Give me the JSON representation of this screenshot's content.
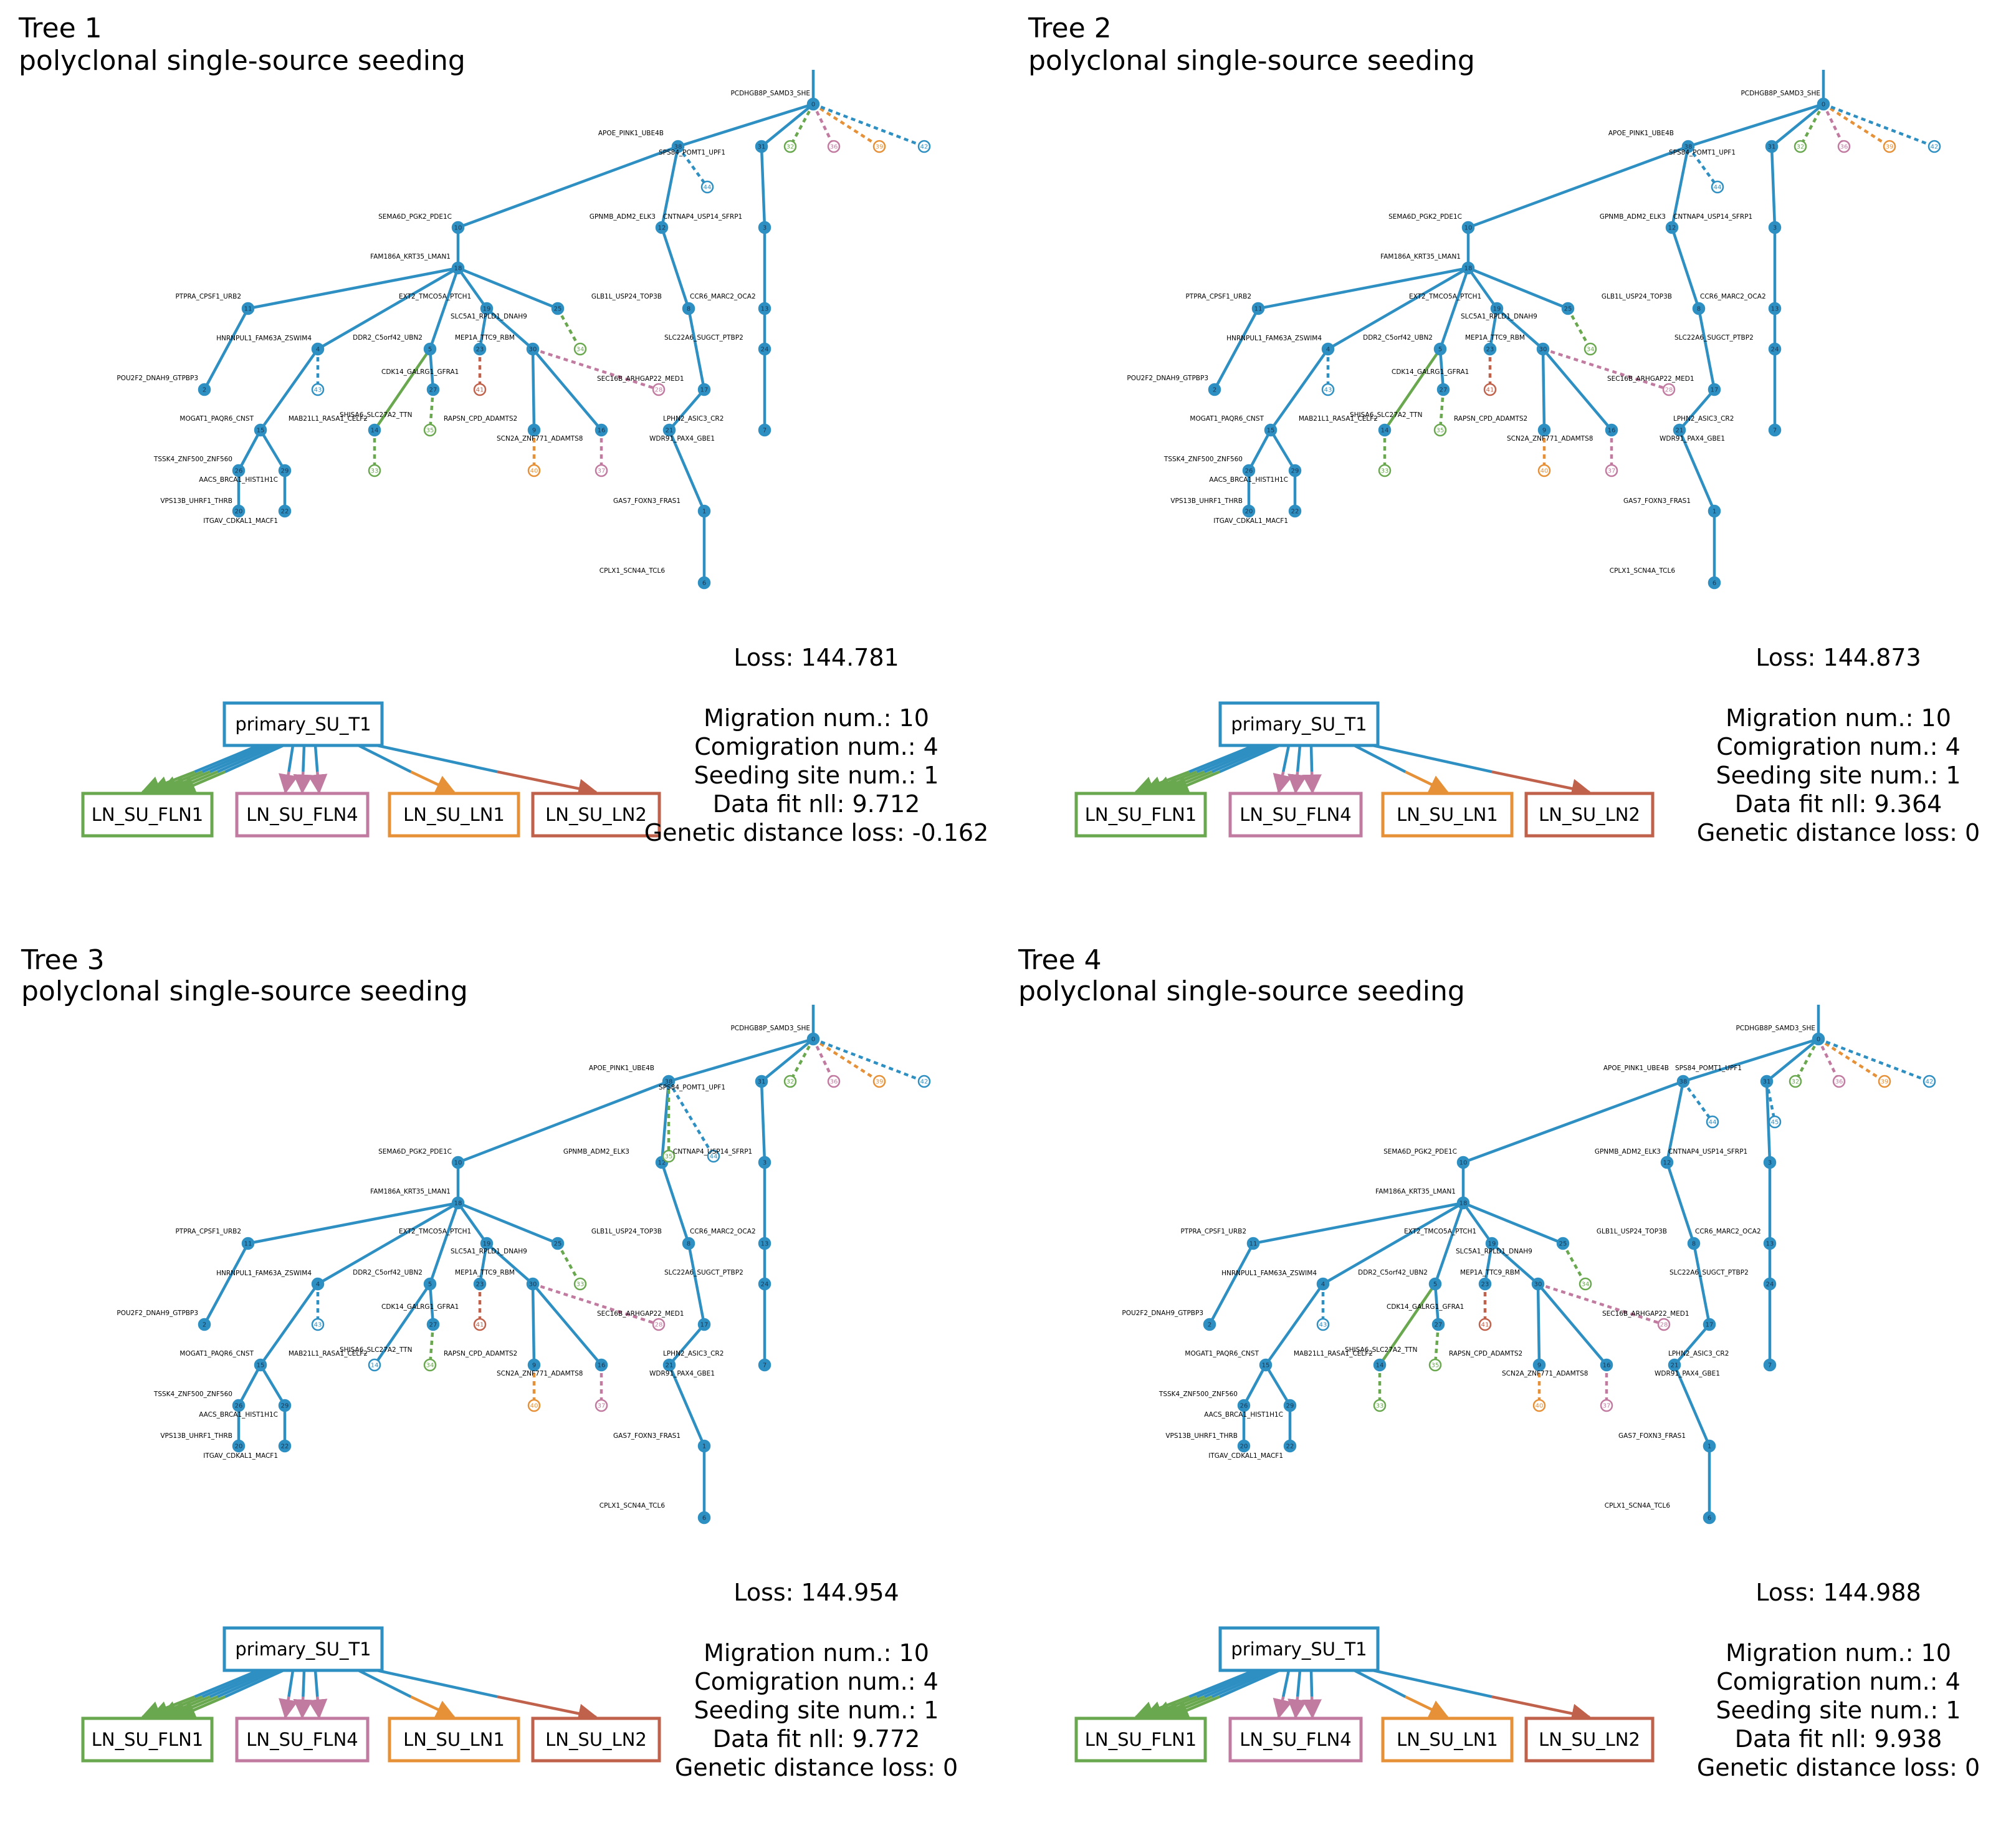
{
  "colors": {
    "primary": "#2e8fc2",
    "ln_su_fln1": "#6aa84f",
    "ln_su_fln4": "#c27ba0",
    "ln_su_ln1": "#e69138",
    "ln_su_ln2": "#c0614b"
  },
  "labels": [
    {
      "id": "0",
      "text": "PCDHGB8P_SAMD3_SHE"
    },
    {
      "id": "38",
      "text": "APOE_PINK1_UBE4B"
    },
    {
      "id": "s1",
      "text": "SPS84_POMT1_UPF1"
    },
    {
      "id": "10",
      "text": "SEMA6D_PGK2_PDE1C"
    },
    {
      "id": "18",
      "text": "FAM186A_KRT35_LMAN1"
    },
    {
      "id": "11",
      "text": "PTPRA_CPSF1_URB2"
    },
    {
      "id": "4",
      "text": "HNRNPUL1_FAM63A_ZSWIM4"
    },
    {
      "id": "2",
      "text": "POU2F2_DNAH9_GTPBP3"
    },
    {
      "id": "15",
      "text": "MOGAT1_PAQR6_CNST"
    },
    {
      "id": "26",
      "text": "TSSK4_ZNF500_ZNF560"
    },
    {
      "id": "29",
      "text": "AACS_BRCA1_HIST1H1C"
    },
    {
      "id": "20",
      "text": "VPS13B_UHRF1_THRB"
    },
    {
      "id": "22",
      "text": "ITGAV_CDKAL1_MACF1"
    },
    {
      "id": "19",
      "text": "EXT2_TMCO5A_PTCH1"
    },
    {
      "id": "5",
      "text": "DDR2_C5orf42_UBN2"
    },
    {
      "id": "14",
      "text": "MAB21L1_RASA1_CELF2"
    },
    {
      "id": "27",
      "text": "CDK14_GALRG1_GFRA1"
    },
    {
      "id": "s2",
      "text": "SHISA6_SLC27A2_TTN"
    },
    {
      "id": "25",
      "text": "SLC5A1_RPLD1_DNAH9"
    },
    {
      "id": "23",
      "text": "MEP1A_TTC9_RBM"
    },
    {
      "id": "30",
      "text": "RAPSN_CPD_ADAMTS2"
    },
    {
      "id": "7",
      "text": "SCN2A_ZNF771_ADAMTS8"
    },
    {
      "id": "s3",
      "text": "SEC16B_ARHGAP22_MED1"
    },
    {
      "id": "12",
      "text": "GPNMB_ADM2_ELK3"
    },
    {
      "id": "31",
      "text": "CNTNAP4_USP14_SFRP1"
    },
    {
      "id": "8",
      "text": "GLB1L_USP24_TOP3B"
    },
    {
      "id": "s4",
      "text": "CCR6_MARC2_OCA2"
    },
    {
      "id": "17",
      "text": "SLC22A6_SUGCT_PTBP2"
    },
    {
      "id": "21",
      "text": "LPHN2_ASIC3_CR2"
    },
    {
      "id": "s5",
      "text": "WDR91_PAX4_GBE1"
    },
    {
      "id": "1",
      "text": "GAS7_FOXN3_FRAS1"
    },
    {
      "id": "6",
      "text": "CPLX1_SCN4A_TCL6"
    }
  ],
  "panels": [
    {
      "title": "Tree 1",
      "subtitle": "polyclonal single-source seeding",
      "loss": "Loss: 144.781",
      "stats": [
        "Migration num.: 10",
        "Comigration num.: 4",
        "Seeding site num.: 1",
        "Data fit nll: 9.712",
        "Genetic distance loss: -0.162"
      ],
      "nodes": {
        "0": "0",
        "38": "38",
        "31": "31",
        "32": "32",
        "36": "36",
        "39": "39",
        "42": "42",
        "44": "44",
        "10": "10",
        "12": "12",
        "3": "3",
        "18": "18",
        "11": "11",
        "19": "19",
        "25": "25",
        "8": "8",
        "13": "13",
        "4": "4",
        "5": "5",
        "23": "23",
        "30": "30",
        "34": "34",
        "24": "24",
        "28": "28",
        "2": "2",
        "43": "43",
        "27": "27",
        "41": "41",
        "17": "17",
        "15": "15",
        "14": "14",
        "35": "35",
        "9": "9",
        "16": "16",
        "21": "21",
        "7": "7",
        "26": "26",
        "29": "29",
        "33": "33",
        "40": "40",
        "37": "37",
        "20": "20",
        "22": "22",
        "1": "1",
        "6": "6"
      },
      "primary": "primary_SU_T1",
      "sites": [
        "LN_SU_FLN1",
        "LN_SU_FLN4",
        "LN_SU_LN1",
        "LN_SU_LN2"
      ],
      "migration_counts": {
        "LN_SU_FLN1": 5,
        "LN_SU_FLN4": 3,
        "LN_SU_LN1": 1,
        "LN_SU_LN2": 1
      }
    },
    {
      "title": "Tree 2",
      "subtitle": "polyclonal single-source seeding",
      "loss": "Loss: 144.873",
      "stats": [
        "Migration num.: 10",
        "Comigration num.: 4",
        "Seeding site num.: 1",
        "Data fit nll: 9.364",
        "Genetic distance loss: 0"
      ],
      "nodes": {
        "0": "0",
        "38": "38",
        "31": "31",
        "32": "32",
        "36": "36",
        "39": "39",
        "42": "42",
        "44": "44",
        "10": "10",
        "12": "12",
        "3": "3",
        "18": "18",
        "11": "11",
        "19": "19",
        "25": "25",
        "8": "8",
        "13": "13",
        "4": "4",
        "5": "5",
        "23": "23",
        "30": "30",
        "34": "34",
        "24": "24",
        "28": "28",
        "2": "2",
        "43": "43",
        "27": "27",
        "41": "41",
        "17": "17",
        "15": "15",
        "14": "14",
        "35": "35",
        "9": "9",
        "16": "16",
        "21": "21",
        "7": "7",
        "26": "26",
        "29": "29",
        "33": "33",
        "40": "40",
        "37": "37",
        "20": "20",
        "22": "22",
        "1": "1",
        "6": "6"
      },
      "primary": "primary_SU_T1",
      "sites": [
        "LN_SU_FLN1",
        "LN_SU_FLN4",
        "LN_SU_LN1",
        "LN_SU_LN2"
      ],
      "migration_counts": {
        "LN_SU_FLN1": 5,
        "LN_SU_FLN4": 3,
        "LN_SU_LN1": 1,
        "LN_SU_LN2": 1
      }
    },
    {
      "title": "Tree 3",
      "subtitle": "polyclonal single-source seeding",
      "loss": "Loss: 144.954",
      "stats": [
        "Migration num.: 10",
        "Comigration num.: 4",
        "Seeding site num.: 1",
        "Data fit nll: 9.772",
        "Genetic distance loss: 0"
      ],
      "nodes": {
        "0": "0",
        "38": "38",
        "31": "31",
        "32": "32",
        "36": "36",
        "39": "39",
        "42": "42",
        "44": "44",
        "10": "10",
        "12": "12",
        "3": "3",
        "18": "18",
        "11": "11",
        "19": "19",
        "25": "25",
        "8": "8",
        "13": "13",
        "4": "4",
        "5": "5",
        "23": "23",
        "30": "30",
        "33": "33",
        "24": "24",
        "28": "28",
        "2": "2",
        "43": "43",
        "27": "27",
        "41": "41",
        "17": "17",
        "15": "15",
        "14": "14",
        "34": "34",
        "9": "9",
        "16": "16",
        "21": "21",
        "7": "7",
        "26": "26",
        "29": "29",
        "40": "40",
        "37": "37",
        "20": "20",
        "22": "22",
        "1": "1",
        "6": "6",
        "35": "35"
      },
      "primary": "primary_SU_T1",
      "sites": [
        "LN_SU_FLN1",
        "LN_SU_FLN4",
        "LN_SU_LN1",
        "LN_SU_LN2"
      ],
      "migration_counts": {
        "LN_SU_FLN1": 5,
        "LN_SU_FLN4": 3,
        "LN_SU_LN1": 1,
        "LN_SU_LN2": 1
      }
    },
    {
      "title": "Tree 4",
      "subtitle": "polyclonal single-source seeding",
      "loss": "Loss: 144.988",
      "stats": [
        "Migration num.: 10",
        "Comigration num.: 4",
        "Seeding site num.: 1",
        "Data fit nll: 9.938",
        "Genetic distance loss: 0"
      ],
      "nodes": {
        "0": "0",
        "38": "38",
        "31": "31",
        "32": "32",
        "36": "36",
        "39": "39",
        "42": "42",
        "44": "44",
        "10": "10",
        "12": "12",
        "3": "3",
        "18": "18",
        "11": "11",
        "19": "19",
        "25": "25",
        "8": "8",
        "13": "13",
        "4": "4",
        "5": "5",
        "23": "23",
        "30": "30",
        "34": "34",
        "24": "24",
        "28": "28",
        "2": "2",
        "43": "43",
        "27": "27",
        "41": "41",
        "17": "17",
        "15": "15",
        "14": "14",
        "35": "35",
        "9": "9",
        "16": "16",
        "21": "21",
        "7": "7",
        "26": "26",
        "29": "29",
        "33": "33",
        "40": "40",
        "37": "37",
        "20": "20",
        "22": "22",
        "1": "1",
        "6": "6",
        "45": "45"
      },
      "primary": "primary_SU_T1",
      "sites": [
        "LN_SU_FLN1",
        "LN_SU_FLN4",
        "LN_SU_LN1",
        "LN_SU_LN2"
      ],
      "migration_counts": {
        "LN_SU_FLN1": 5,
        "LN_SU_FLN4": 3,
        "LN_SU_LN1": 1,
        "LN_SU_LN2": 1
      }
    }
  ]
}
